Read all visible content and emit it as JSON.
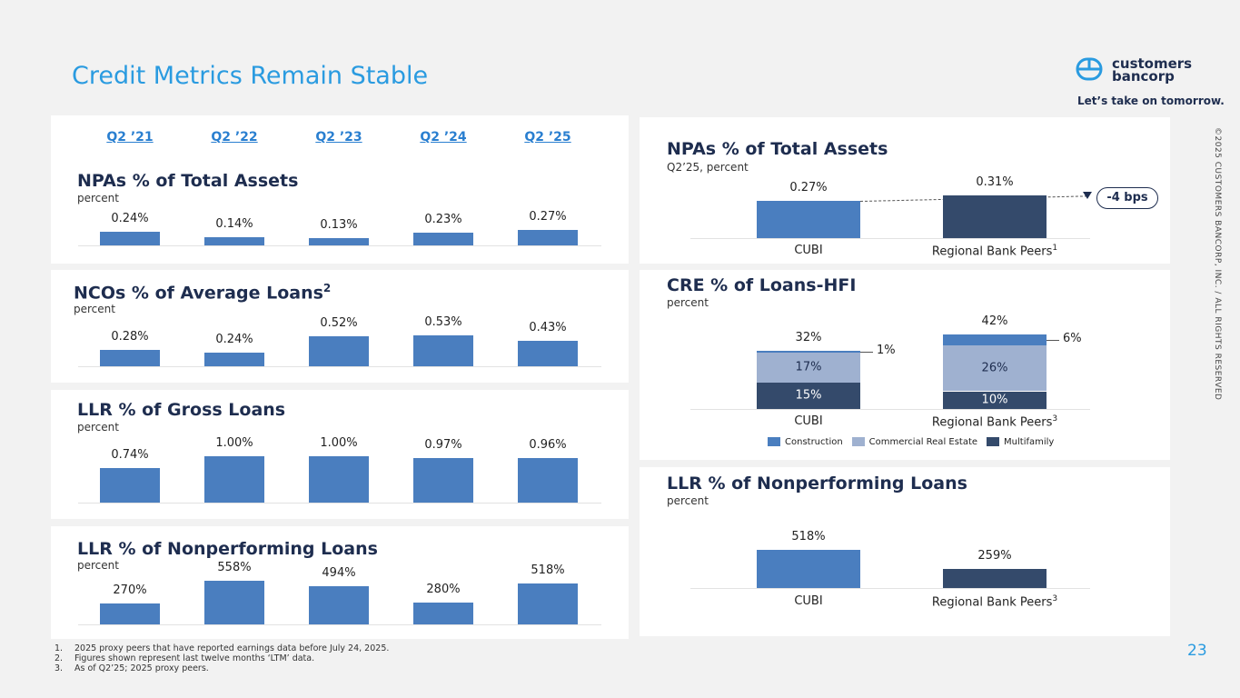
{
  "header": {
    "title": "Credit Metrics Remain Stable",
    "logo_line1": "customers",
    "logo_line2": "bancorp",
    "tagline": "Let’s take on tomorrow."
  },
  "quarters": [
    "Q2 ’21",
    "Q2 ’22",
    "Q2 ’23",
    "Q2 ’24",
    "Q2 ’25"
  ],
  "colors": {
    "bar": "#4a7ebf",
    "dark": "#344a6b",
    "light": "#9fb1d0",
    "title": "#2a9be0"
  },
  "right": {
    "npa_title": "NPAs % of Total Assets",
    "npa_sub": "Q2’25, percent",
    "badge": "-4 bps",
    "cre_title": "CRE % of Loans-HFI",
    "cre_sub": "percent",
    "cre_legend": [
      "Construction",
      "Commercial Real Estate",
      "Multifamily"
    ],
    "llr_title": "LLR % of Nonperforming Loans",
    "llr_sub": "percent",
    "cat_cubi": "CUBI",
    "cat_peers": "Regional Bank Peers",
    "sup1": "1",
    "sup3": "3"
  },
  "footnotes": [
    [
      "1.",
      "2025 proxy peers that have reported earnings data before July 24, 2025."
    ],
    [
      "2.",
      "Figures shown represent last twelve months ‘LTM’ data."
    ],
    [
      "3.",
      "As of Q2’25; 2025 proxy peers."
    ]
  ],
  "copyright": "©2025 CUSTOMERS BANCORP, INC. / ALL RIGHTS RESERVED",
  "page_number": "23",
  "chart_data": [
    {
      "type": "bar",
      "title": "NPAs % of Total Assets",
      "subtitle": "percent",
      "categories": [
        "Q2 ’21",
        "Q2 ’22",
        "Q2 ’23",
        "Q2 ’24",
        "Q2 ’25"
      ],
      "values": [
        0.24,
        0.14,
        0.13,
        0.23,
        0.27
      ],
      "labels": [
        "0.24%",
        "0.14%",
        "0.13%",
        "0.23%",
        "0.27%"
      ]
    },
    {
      "type": "bar",
      "title": "NCOs % of Average Loans",
      "title_sup": "2",
      "subtitle": "percent",
      "categories": [
        "Q2 ’21",
        "Q2 ’22",
        "Q2 ’23",
        "Q2 ’24",
        "Q2 ’25"
      ],
      "values": [
        0.28,
        0.24,
        0.52,
        0.53,
        0.43
      ],
      "labels": [
        "0.28%",
        "0.24%",
        "0.52%",
        "0.53%",
        "0.43%"
      ]
    },
    {
      "type": "bar",
      "title": "LLR % of Gross Loans",
      "subtitle": "percent",
      "categories": [
        "Q2 ’21",
        "Q2 ’22",
        "Q2 ’23",
        "Q2 ’24",
        "Q2 ’25"
      ],
      "values": [
        0.74,
        1.0,
        1.0,
        0.97,
        0.96
      ],
      "labels": [
        "0.74%",
        "1.00%",
        "1.00%",
        "0.97%",
        "0.96%"
      ]
    },
    {
      "type": "bar",
      "title": "LLR % of Nonperforming Loans",
      "subtitle": "percent",
      "categories": [
        "Q2 ’21",
        "Q2 ’22",
        "Q2 ’23",
        "Q2 ’24",
        "Q2 ’25"
      ],
      "values": [
        270,
        558,
        494,
        280,
        518
      ],
      "labels": [
        "270%",
        "558%",
        "494%",
        "280%",
        "518%"
      ]
    },
    {
      "type": "bar",
      "title": "NPAs % of Total Assets",
      "subtitle": "Q2’25, percent",
      "categories": [
        "CUBI",
        "Regional Bank Peers"
      ],
      "values": [
        0.27,
        0.31
      ],
      "labels": [
        "0.27%",
        "0.31%"
      ],
      "annotation": "-4 bps"
    },
    {
      "type": "bar",
      "stacked": true,
      "title": "CRE % of Loans-HFI",
      "subtitle": "percent",
      "categories": [
        "CUBI",
        "Regional Bank Peers"
      ],
      "series": [
        {
          "name": "Multifamily",
          "values": [
            15,
            10
          ],
          "labels": [
            "15%",
            "10%"
          ]
        },
        {
          "name": "Commercial Real Estate",
          "values": [
            17,
            26
          ],
          "labels": [
            "17%",
            "26%"
          ]
        },
        {
          "name": "Construction",
          "values": [
            1,
            6
          ],
          "labels": [
            "1%",
            "6%"
          ]
        }
      ],
      "totals": [
        "32%",
        "42%"
      ],
      "legend": "bottom"
    },
    {
      "type": "bar",
      "title": "LLR % of Nonperforming Loans",
      "subtitle": "percent",
      "categories": [
        "CUBI",
        "Regional Bank Peers"
      ],
      "values": [
        518,
        259
      ],
      "labels": [
        "518%",
        "259%"
      ]
    }
  ]
}
